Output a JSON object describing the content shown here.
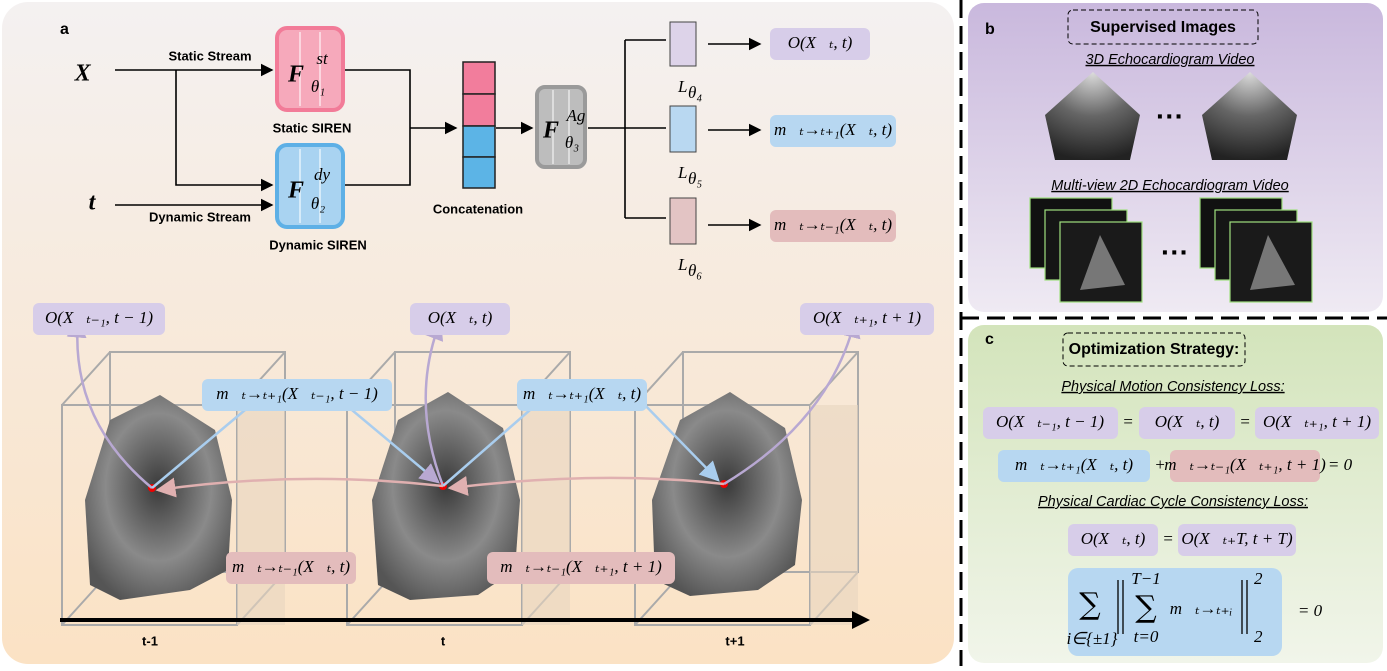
{
  "panel_a": {
    "label": "a",
    "inputs": {
      "x": "X⃗",
      "t": "t"
    },
    "streams": {
      "static": "Static Stream",
      "dynamic": "Dynamic Stream"
    },
    "static_net": {
      "base": "F",
      "sup": "st",
      "sub": "θ₁",
      "caption": "Static SIREN"
    },
    "dynamic_net": {
      "base": "F",
      "sup": "dy",
      "sub": "θ₂",
      "caption": "Dynamic SIREN"
    },
    "concat": "Concatenation",
    "aggregator": {
      "base": "F",
      "sup": "Ag",
      "sub": "θ₃"
    },
    "heads": [
      {
        "base": "L",
        "sub": "θ₄",
        "output": "O(X⃗ₜ, t)"
      },
      {
        "base": "L",
        "sub": "θ₅",
        "output": "m⃗ₜ→ₜ₊₁(X⃗ₜ, t)"
      },
      {
        "base": "L",
        "sub": "θ₆",
        "output": "m⃗ₜ→ₜ₋₁(X⃗ₜ, t)"
      }
    ],
    "occupancy": [
      "O(X⃗ₜ₋₁, t − 1)",
      "O(X⃗ₜ, t)",
      "O(X⃗ₜ₊₁, t + 1)"
    ],
    "forward_motion": [
      "m⃗ₜ→ₜ₊₁(X⃗ₜ₋₁, t − 1)",
      "m⃗ₜ→ₜ₊₁(X⃗ₜ, t)"
    ],
    "backward_motion": [
      "m⃗ₜ→ₜ₋₁(X⃗ₜ, t)",
      "m⃗ₜ→ₜ₋₁(X⃗ₜ₊₁, t + 1)"
    ],
    "time_labels": [
      "t-1",
      "t",
      "t+1"
    ]
  },
  "panel_b": {
    "label": "b",
    "title": "Supervised Images",
    "video_3d": "3D Echocardiogram Video",
    "ellipsis_3d": "···",
    "video_2d": "Multi-view 2D Echocardiogram Video",
    "ellipsis_2d": "···"
  },
  "panel_c": {
    "label": "c",
    "title": "Optimization Strategy:",
    "motion_loss": "Physical Motion Consistency Loss:",
    "eq1": {
      "terms": [
        "O(X⃗ₜ₋₁, t − 1)",
        "O(X⃗ₜ, t)",
        "O(X⃗ₜ₊₁, t + 1)"
      ],
      "ops": [
        "=",
        "="
      ]
    },
    "eq2": {
      "terms": [
        "m⃗ₜ→ₜ₊₁(X⃗ₜ, t)",
        "m⃗ₜ→ₜ₋₁(X⃗ₜ₊₁, t + 1)"
      ],
      "ops": [
        "+",
        "= 0"
      ]
    },
    "cycle_loss": "Physical Cardiac Cycle Consistency Loss:",
    "eq3": {
      "terms": [
        "O(X⃗ₜ, t)",
        "O(X⃗ₜ₊T, t + T)"
      ],
      "ops": [
        "="
      ]
    },
    "eq4": {
      "outer_sum": "∑",
      "outer_index": "i∈{±1}",
      "inner_sum": "∑",
      "inner_upper": "T−1",
      "inner_lower": "t=0",
      "term": "m⃗ₜ→ₜ₊ᵢ",
      "norm_sub": "2",
      "norm_sup": "2",
      "result": "= 0"
    }
  }
}
